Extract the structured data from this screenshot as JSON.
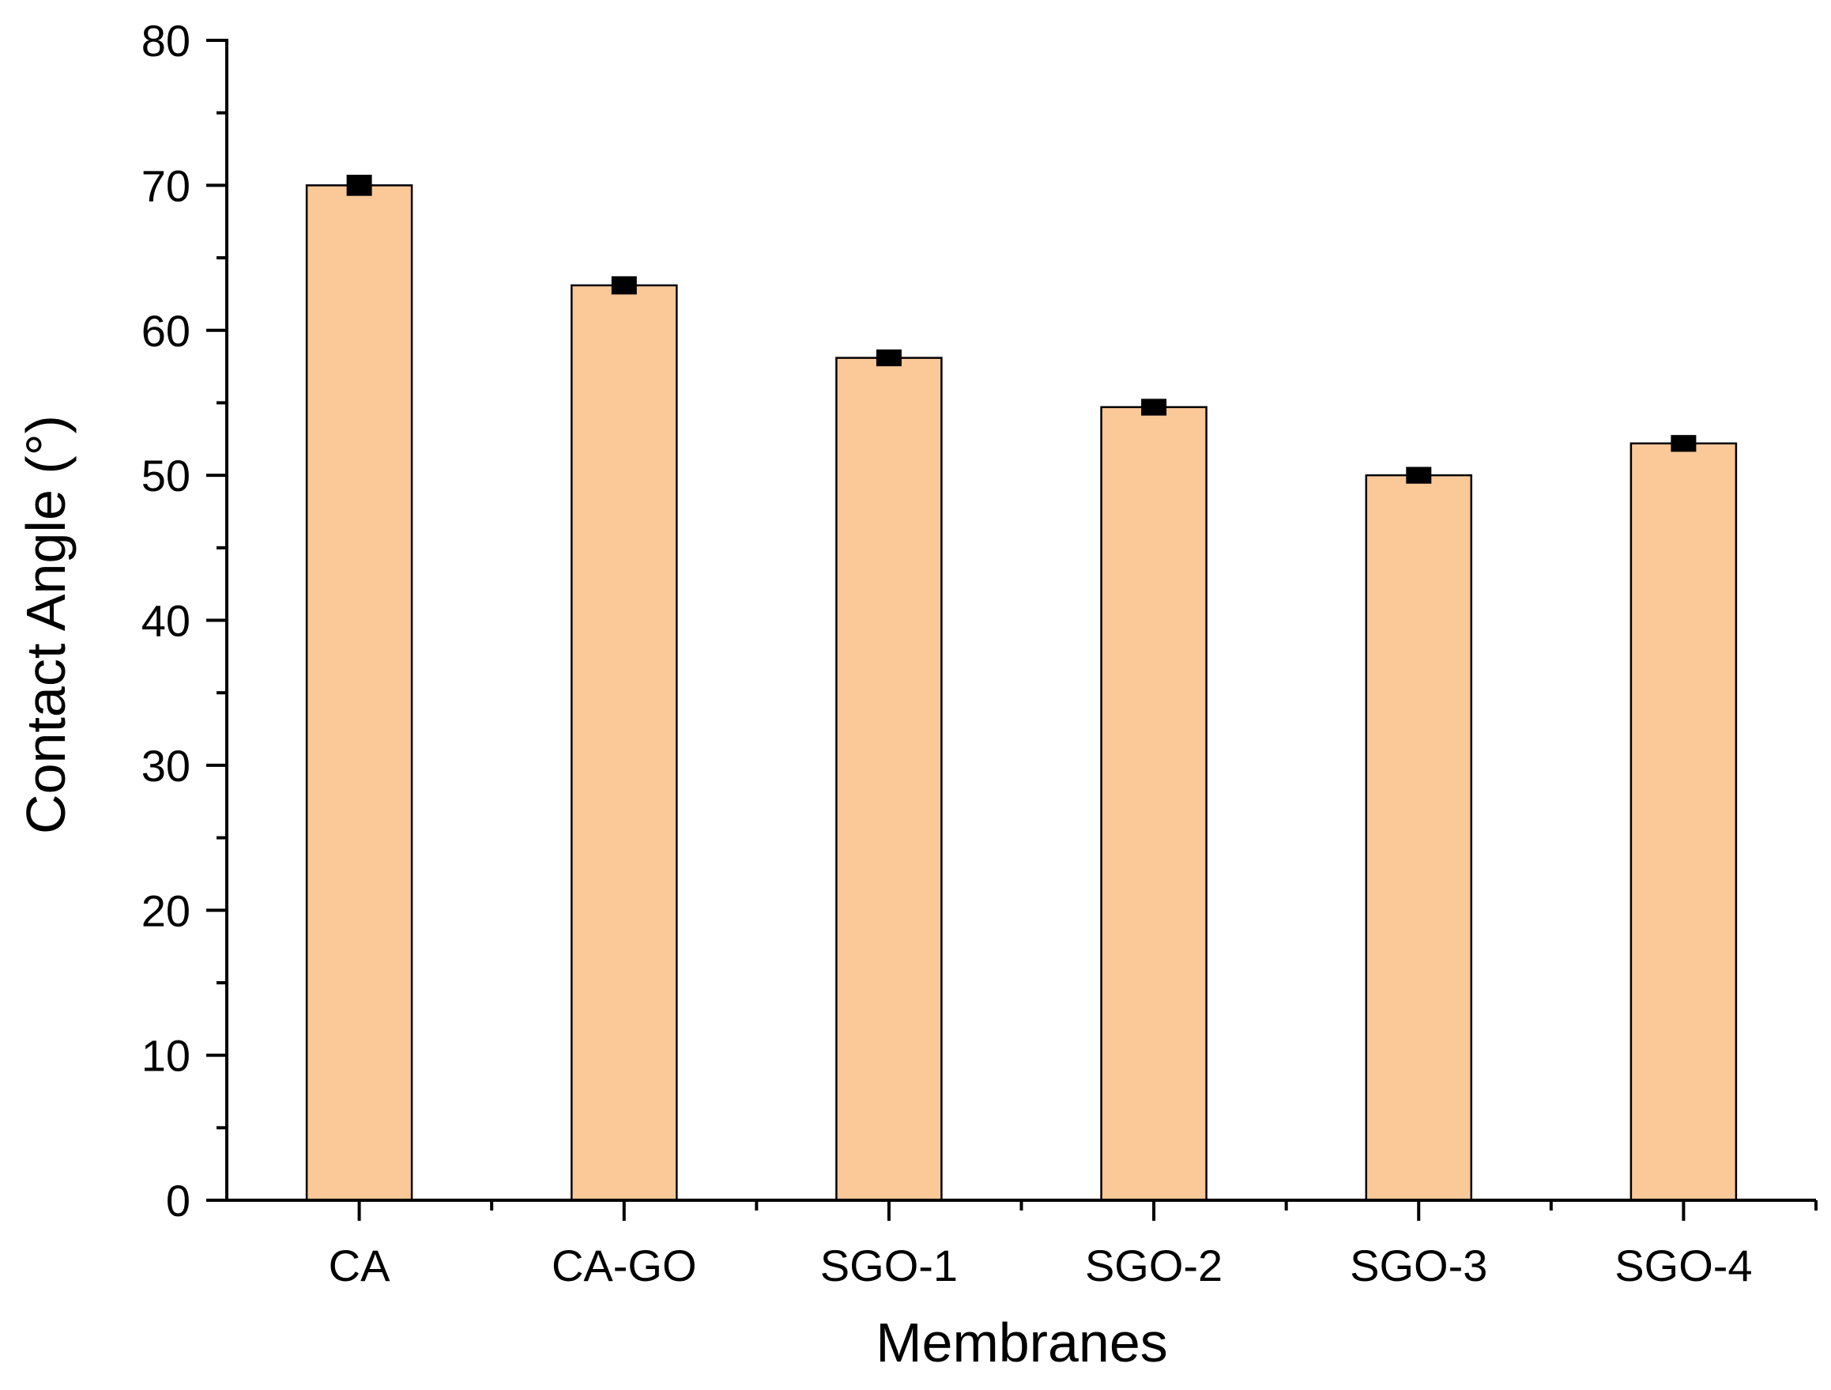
{
  "chart_data": {
    "type": "bar",
    "title": "",
    "xlabel": "Membranes",
    "ylabel": "Contact Angle (°)",
    "categories": [
      "CA",
      "CA-GO",
      "SGO-1",
      "SGO-2",
      "SGO-3",
      "SGO-4"
    ],
    "values": [
      70.0,
      63.1,
      58.1,
      54.7,
      50.0,
      52.2
    ],
    "errors": [
      0.4,
      0.3,
      0.25,
      0.25,
      0.25,
      0.25
    ],
    "ylim": [
      0,
      80
    ],
    "yticks": [
      0,
      10,
      20,
      30,
      40,
      50,
      60,
      70,
      80
    ],
    "grid": false,
    "legend": "none",
    "colors": {
      "bar_fill": "#FBC898",
      "bar_stroke": "#000000",
      "axis": "#000000",
      "error_bar": "#000000"
    }
  }
}
